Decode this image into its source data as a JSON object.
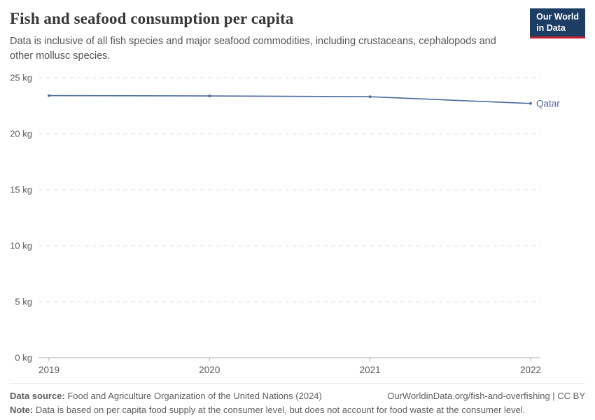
{
  "header": {
    "title": "Fish and seafood consumption per capita",
    "subtitle": "Data is inclusive of all fish species and major seafood commodities, including crustaceans, cephalopods and other mollusc species.",
    "logo": {
      "line1": "Our World",
      "line2": "in Data"
    }
  },
  "chart_data": {
    "type": "line",
    "title": "Fish and seafood consumption per capita",
    "x": [
      2019,
      2020,
      2021,
      2022
    ],
    "xtick_labels": [
      "2019",
      "2020",
      "2021",
      "2022"
    ],
    "series": [
      {
        "name": "Qatar",
        "values": [
          23.4,
          23.37,
          23.3,
          22.7
        ],
        "color": "#4c6a9d"
      }
    ],
    "ylabel": "",
    "xlabel": "",
    "ylim": [
      0,
      25
    ],
    "yticks": [
      0,
      5,
      10,
      15,
      20,
      25
    ],
    "ytick_labels": [
      "0 kg",
      "5 kg",
      "10 kg",
      "15 kg",
      "20 kg",
      "25 kg"
    ],
    "grid": "horizontal-dashed",
    "legend_position": "end-of-line-label"
  },
  "footer": {
    "datasource_label": "Data source:",
    "datasource_text": " Food and Agriculture Organization of the United Nations (2024)",
    "link_text": "OurWorldinData.org/fish-and-overfishing | CC BY",
    "note_label": "Note:",
    "note_text": " Data is based on per capita food supply at the consumer level, but does not account for food waste at the consumer level."
  }
}
